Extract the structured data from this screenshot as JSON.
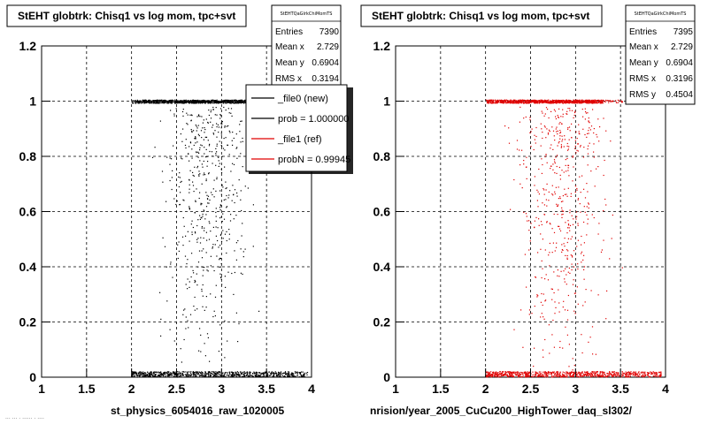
{
  "chart_data": [
    {
      "type": "scatter",
      "title": "StEHT globtrk: Chisq1 vs log mom, tpc+svt",
      "xlabel": "st_physics_6054016_raw_1020005",
      "ylabel": "",
      "xlim": [
        1,
        4
      ],
      "ylim": [
        0,
        1.2
      ],
      "xticks": [
        "1",
        "1.5",
        "2",
        "2.5",
        "3",
        "3.5",
        "4"
      ],
      "yticks": [
        "0",
        "0.2",
        "0.4",
        "0.6",
        "0.8",
        "1",
        "1.2"
      ],
      "grid": true,
      "marker_color": "#000000",
      "stats": {
        "header": "StEHTQaGlrkChiMomTS",
        "rows": [
          {
            "label": "Entries",
            "value": "7390"
          },
          {
            "label": "Mean x",
            "value": "2.729"
          },
          {
            "label": "Mean y",
            "value": "0.6904"
          },
          {
            "label": "RMS x",
            "value": "0.3194"
          }
        ]
      },
      "legend": {
        "placement": "top-right",
        "entries": [
          {
            "text": "_file0 (new)",
            "color": "#000000"
          },
          {
            "text": "prob = 1.000000",
            "color": "#000000"
          },
          {
            "text": "_file1 (ref)",
            "color": "#e00000"
          },
          {
            "text": "probN = 0.99945",
            "color": "#e00000"
          }
        ]
      },
      "series": [
        {
          "band": "y=1",
          "x_range": [
            2.0,
            3.6
          ],
          "density": "high"
        },
        {
          "band": "y=0",
          "x_range": [
            2.0,
            3.95
          ],
          "density": "high"
        },
        {
          "band": "scatter 0<y<1",
          "x_range": [
            2.1,
            3.6
          ],
          "density": "sparse"
        }
      ]
    },
    {
      "type": "scatter",
      "title": "StEHT globtrk: Chisq1 vs log mom, tpc+svt",
      "xlabel": "nrision/year_2005_CuCu200_HighTower_daq_sl302/",
      "ylabel": "",
      "xlim": [
        1,
        4
      ],
      "ylim": [
        0,
        1.2
      ],
      "xticks": [
        "1",
        "1.5",
        "2",
        "2.5",
        "3",
        "3.5",
        "4"
      ],
      "yticks": [
        "0",
        "0.2",
        "0.4",
        "0.6",
        "0.8",
        "1",
        "1.2"
      ],
      "grid": true,
      "marker_color": "#e00000",
      "stats": {
        "header": "StEHTQaGlrkChiMomTS",
        "rows": [
          {
            "label": "Entries",
            "value": "7395"
          },
          {
            "label": "Mean x",
            "value": "2.729"
          },
          {
            "label": "Mean y",
            "value": "0.6904"
          },
          {
            "label": "RMS x",
            "value": "0.3196"
          },
          {
            "label": "RMS y",
            "value": "0.4504"
          }
        ]
      },
      "series": [
        {
          "band": "y=1",
          "x_range": [
            2.0,
            3.6
          ],
          "density": "high"
        },
        {
          "band": "y=0",
          "x_range": [
            2.0,
            3.95
          ],
          "density": "high"
        },
        {
          "band": "scatter 0<y<1",
          "x_range": [
            2.1,
            3.6
          ],
          "density": "sparse"
        }
      ]
    }
  ],
  "footer_text": "··· ··· · ······ · ····"
}
